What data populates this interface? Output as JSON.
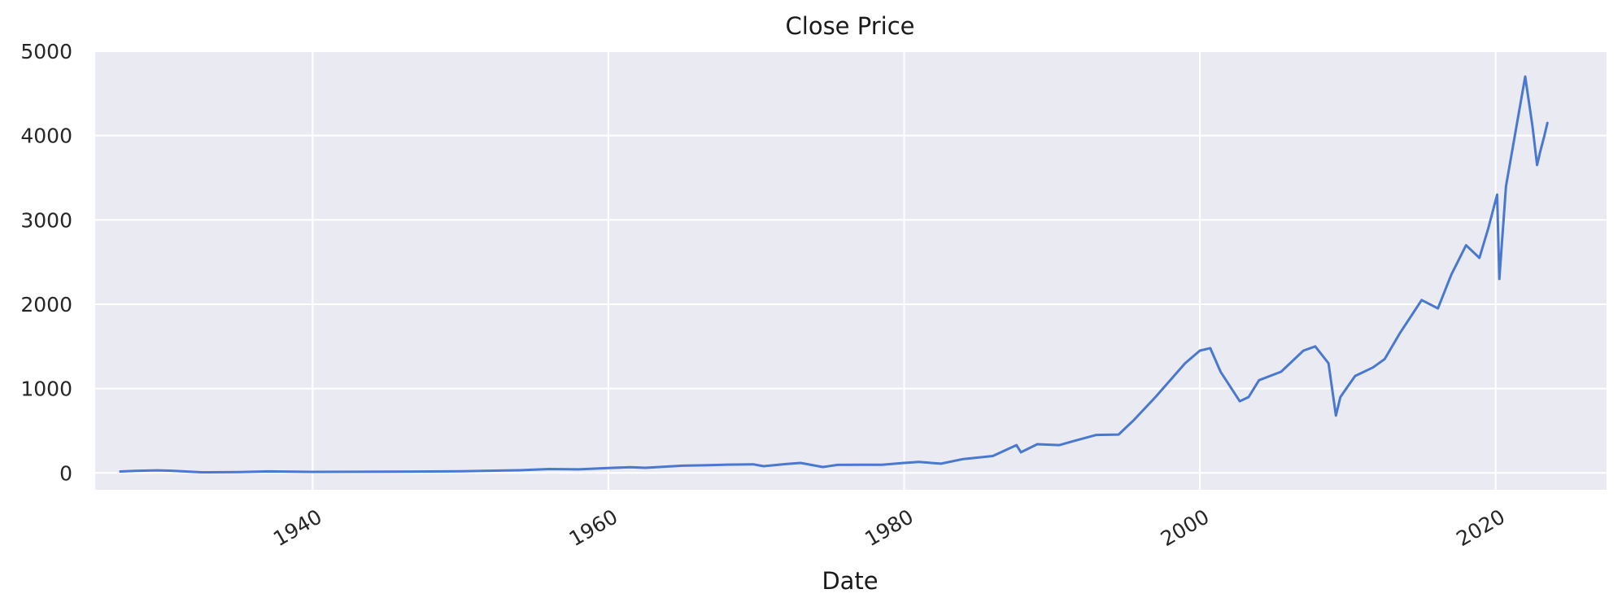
{
  "chart_data": {
    "type": "line",
    "title": "Close Price",
    "xlabel": "Date",
    "ylabel": "",
    "xlim": [
      1925.3,
      2027.5
    ],
    "ylim": [
      -200,
      5000
    ],
    "x_ticks": [
      1940,
      1960,
      1980,
      2000,
      2020
    ],
    "x_tick_labels": [
      "1940",
      "1960",
      "1980",
      "2000",
      "2020"
    ],
    "y_ticks": [
      0,
      1000,
      2000,
      3000,
      4000,
      5000
    ],
    "y_tick_labels": [
      "0",
      "1000",
      "2000",
      "3000",
      "4000",
      "5000"
    ],
    "grid": true,
    "legend": "none",
    "colors": {
      "line": "#4878d0",
      "plot_bg": "#eaeaf2",
      "grid": "#ffffff"
    },
    "series": [
      {
        "x": [
          1927.0,
          1928.0,
          1929.5,
          1930.5,
          1932.5,
          1935.0,
          1937.0,
          1940.0,
          1945.0,
          1950.0,
          1954.0,
          1956.0,
          1958.0,
          1960.0,
          1961.5,
          1962.5,
          1965.0,
          1966.5,
          1968.0,
          1969.8,
          1970.5,
          1972.0,
          1973.0,
          1974.5,
          1975.5,
          1977.0,
          1978.5,
          1980.0,
          1981.0,
          1982.5,
          1984.0,
          1986.0,
          1987.6,
          1987.9,
          1989.0,
          1990.5,
          1991.5,
          1993.0,
          1994.5,
          1995.5,
          1997.0,
          1998.0,
          1999.0,
          2000.0,
          2000.7,
          2001.4,
          2002.7,
          2003.3,
          2004.0,
          2005.5,
          2007.0,
          2007.8,
          2008.7,
          2009.2,
          2009.5,
          2010.5,
          2011.7,
          2012.5,
          2013.5,
          2015.0,
          2016.1,
          2017.0,
          2018.0,
          2018.9,
          2019.5,
          2020.1,
          2020.25,
          2020.7,
          2021.5,
          2022.0,
          2022.5,
          2022.8,
          2023.0,
          2023.3,
          2023.5
        ],
        "y": [
          17,
          24,
          31,
          26,
          7,
          10,
          18,
          12,
          14,
          20,
          32,
          46,
          42,
          58,
          68,
          60,
          86,
          90,
          98,
          102,
          80,
          105,
          118,
          70,
          95,
          97,
          96,
          118,
          130,
          110,
          165,
          200,
          330,
          245,
          340,
          330,
          380,
          450,
          455,
          620,
          900,
          1100,
          1300,
          1450,
          1480,
          1200,
          850,
          900,
          1100,
          1200,
          1450,
          1500,
          1300,
          680,
          900,
          1150,
          1250,
          1350,
          1650,
          2050,
          1950,
          2350,
          2700,
          2550,
          2900,
          3300,
          2300,
          3400,
          4200,
          4700,
          4100,
          3650,
          3800,
          4000,
          4150
        ]
      }
    ]
  }
}
